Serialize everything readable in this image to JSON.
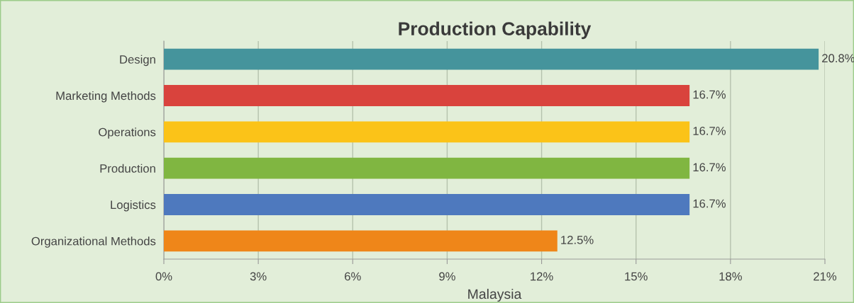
{
  "chart_data": {
    "type": "bar",
    "orientation": "horizontal",
    "title": "Production Capability",
    "xlabel": "Malaysia",
    "categories": [
      "Design",
      "Marketing Methods",
      "Operations",
      "Production",
      "Logistics",
      "Organizational Methods"
    ],
    "values": [
      20.8,
      16.7,
      16.7,
      16.7,
      16.7,
      12.5
    ],
    "colors": [
      "#45949c",
      "#d9433d",
      "#fbc318",
      "#80b641",
      "#4e79be",
      "#ef8619"
    ],
    "value_labels": [
      "20.8%",
      "16.7%",
      "16.7%",
      "16.7%",
      "16.7%",
      "12.5%"
    ],
    "xlim": [
      0,
      21
    ],
    "xticks": [
      {
        "value": 0,
        "label": "0%"
      },
      {
        "value": 3,
        "label": "3%"
      },
      {
        "value": 6,
        "label": "6%"
      },
      {
        "value": 9,
        "label": "9%"
      },
      {
        "value": 12,
        "label": "12%"
      },
      {
        "value": 15,
        "label": "15%"
      },
      {
        "value": 18,
        "label": "18%"
      },
      {
        "value": 21,
        "label": "21%"
      }
    ],
    "grid": "x",
    "legend": false
  }
}
